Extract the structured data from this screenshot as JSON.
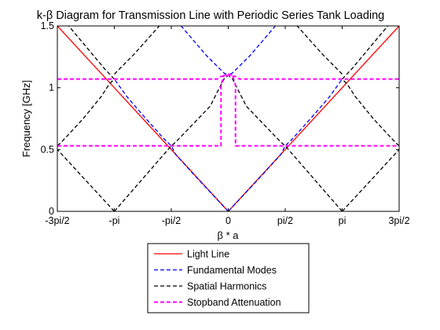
{
  "chart_data": {
    "type": "line",
    "title": "k-β Diagram for Transmission Line with Periodic Series Tank Loading",
    "xlabel": "β * a",
    "ylabel": "Frequency [GHz]",
    "x_range": [
      -4.712389,
      4.712389
    ],
    "y_range": [
      0,
      1.5
    ],
    "x_ticks": [
      {
        "value": -4.712389,
        "label": "-3pi/2"
      },
      {
        "value": -3.141593,
        "label": "-pi"
      },
      {
        "value": -1.570796,
        "label": "-pi/2"
      },
      {
        "value": 0,
        "label": "0"
      },
      {
        "value": 1.570796,
        "label": "pi/2"
      },
      {
        "value": 3.141593,
        "label": "pi"
      },
      {
        "value": 4.712389,
        "label": "3pi/2"
      }
    ],
    "y_ticks": [
      {
        "value": 0,
        "label": "0"
      },
      {
        "value": 0.5,
        "label": "0.5"
      },
      {
        "value": 1,
        "label": "1"
      },
      {
        "value": 1.5,
        "label": "1.5"
      }
    ],
    "grid": false,
    "legend_position": "below-plot",
    "series": [
      {
        "name": "Light Line",
        "color": "#ff0000",
        "dash": "solid",
        "lines": [
          [
            [
              0,
              0
            ],
            [
              4.712389,
              1.5
            ]
          ],
          [
            [
              0,
              0
            ],
            [
              -4.712389,
              1.5
            ]
          ]
        ]
      },
      {
        "name": "Fundamental Modes",
        "color": "#0000ff",
        "dash": "dashed",
        "lines": [
          [
            [
              0,
              0
            ],
            [
              0.94,
              0.295
            ],
            [
              1.2,
              0.38
            ],
            [
              1.45,
              0.46
            ],
            [
              1.571,
              0.53
            ],
            [
              1.75,
              0.58
            ],
            [
              2.3,
              0.76
            ],
            [
              2.8,
              0.93
            ],
            [
              3.141593,
              1.07
            ]
          ],
          [
            [
              0,
              0
            ],
            [
              -0.94,
              0.295
            ],
            [
              -1.2,
              0.38
            ],
            [
              -1.45,
              0.46
            ],
            [
              -1.571,
              0.53
            ],
            [
              -1.75,
              0.58
            ],
            [
              -2.3,
              0.76
            ],
            [
              -2.8,
              0.93
            ],
            [
              -3.141593,
              1.07
            ]
          ],
          [
            [
              0.05,
              1.11
            ],
            [
              0.12,
              1.12
            ],
            [
              0.6,
              1.26
            ],
            [
              1.3,
              1.5
            ]
          ],
          [
            [
              -0.05,
              1.11
            ],
            [
              -0.12,
              1.12
            ],
            [
              -0.6,
              1.26
            ],
            [
              -1.3,
              1.5
            ]
          ]
        ]
      },
      {
        "name": "Spatial Harmonics",
        "color": "#000000",
        "dash": "dashed",
        "lines": [
          [
            [
              -3.141593,
              0
            ],
            [
              -4.712389,
              0.5
            ]
          ],
          [
            [
              -3.141593,
              0
            ],
            [
              -1.571,
              0.53
            ],
            [
              -1.45,
              0.56
            ],
            [
              -0.5,
              0.85
            ],
            [
              -0.12,
              1.07
            ],
            [
              0,
              1.1
            ]
          ],
          [
            [
              3.141593,
              0
            ],
            [
              1.571,
              0.53
            ],
            [
              1.45,
              0.56
            ],
            [
              0.5,
              0.85
            ],
            [
              0.12,
              1.07
            ],
            [
              0,
              1.1
            ]
          ],
          [
            [
              3.141593,
              0
            ],
            [
              4.712389,
              0.5
            ]
          ],
          [
            [
              -4.712389,
              0.53
            ],
            [
              -4.6,
              0.56
            ],
            [
              -4.0,
              0.75
            ],
            [
              -3.5,
              0.93
            ],
            [
              -3.28,
              1.03
            ],
            [
              -3.141593,
              1.07
            ]
          ],
          [
            [
              -3.141593,
              1.11
            ],
            [
              -2.6,
              1.27
            ],
            [
              -1.9,
              1.5
            ]
          ],
          [
            [
              -3.141593,
              1.07
            ],
            [
              -3.4,
              1.15
            ],
            [
              -4.4,
              1.5
            ]
          ],
          [
            [
              3.141593,
              1.07
            ],
            [
              3.4,
              1.15
            ],
            [
              4.4,
              1.5
            ]
          ],
          [
            [
              4.712389,
              0.53
            ],
            [
              4.6,
              0.56
            ],
            [
              4.0,
              0.75
            ],
            [
              3.5,
              0.93
            ],
            [
              3.28,
              1.03
            ],
            [
              3.141593,
              1.07
            ]
          ],
          [
            [
              3.141593,
              1.11
            ],
            [
              2.6,
              1.27
            ],
            [
              1.9,
              1.5
            ]
          ],
          [
            [
              -4.712389,
              0.53
            ],
            [
              -1.571,
              0.53
            ]
          ],
          [
            [
              -4.712389,
              1.07
            ],
            [
              -3.0,
              1.07
            ]
          ]
        ]
      },
      {
        "name": "Stopband Attenuation",
        "color": "#ff00ff",
        "dash": "dashed",
        "lines": [
          [
            [
              -4.712389,
              1.07
            ],
            [
              -3.141593,
              1.07
            ],
            [
              -0.3,
              1.07
            ],
            [
              -0.22,
              1.09
            ],
            [
              0,
              1.1
            ],
            [
              0.22,
              1.09
            ],
            [
              0.3,
              1.07
            ],
            [
              4.712389,
              1.07
            ]
          ],
          [
            [
              -4.712389,
              0.53
            ],
            [
              -0.2,
              0.53
            ],
            [
              -0.2,
              1.02
            ],
            [
              -0.12,
              1.1
            ],
            [
              0,
              1.11
            ],
            [
              0.12,
              1.1
            ],
            [
              0.2,
              1.02
            ],
            [
              0.2,
              0.53
            ],
            [
              4.712389,
              0.53
            ]
          ]
        ]
      }
    ]
  }
}
